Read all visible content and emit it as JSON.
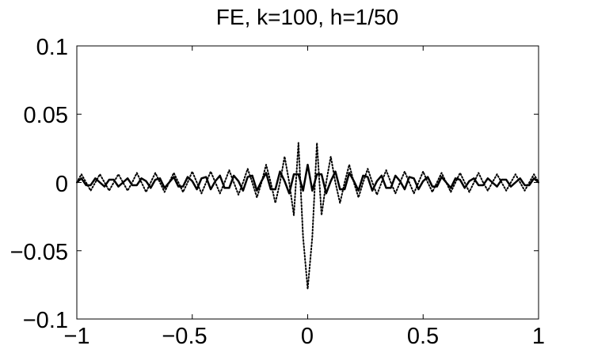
{
  "chart_data": {
    "type": "line",
    "title": "FE, k=100, h=1/50",
    "xlabel": "",
    "ylabel": "",
    "xlim": [
      -1,
      1
    ],
    "ylim": [
      -0.1,
      0.1
    ],
    "x_ticks": [
      -1,
      -0.5,
      0,
      0.5,
      1
    ],
    "x_tick_labels": [
      "−1",
      "−0.5",
      "0",
      "0.5",
      "1"
    ],
    "y_ticks": [
      0.1,
      0.05,
      0,
      -0.05,
      -0.1
    ],
    "y_tick_labels": [
      "0.1",
      "0.05",
      "0",
      "−0.05",
      "−0.1"
    ],
    "grid": false,
    "legend": "none",
    "series": [
      {
        "line_style": "solid",
        "color": "#000000",
        "x": [
          -1,
          -0.98,
          -0.96,
          -0.94,
          -0.92,
          -0.9,
          -0.88,
          -0.86,
          -0.84,
          -0.82,
          -0.8,
          -0.78,
          -0.76,
          -0.74,
          -0.72,
          -0.7,
          -0.68,
          -0.66,
          -0.64,
          -0.62,
          -0.6,
          -0.58,
          -0.56,
          -0.54,
          -0.52,
          -0.5,
          -0.48,
          -0.46,
          -0.44,
          -0.42,
          -0.4,
          -0.38,
          -0.36,
          -0.34,
          -0.32,
          -0.3,
          -0.28,
          -0.26,
          -0.24,
          -0.22,
          -0.2,
          -0.18,
          -0.16,
          -0.14,
          -0.12,
          -0.1,
          -0.08,
          -0.06,
          -0.04,
          -0.02,
          0,
          0.02,
          0.04,
          0.06,
          0.08,
          0.1,
          0.12,
          0.14,
          0.16,
          0.18,
          0.2,
          0.22,
          0.24,
          0.26,
          0.28,
          0.3,
          0.32,
          0.34,
          0.36,
          0.38,
          0.4,
          0.42,
          0.44,
          0.46,
          0.48,
          0.5,
          0.52,
          0.54,
          0.56,
          0.58,
          0.6,
          0.62,
          0.64,
          0.66,
          0.68,
          0.7,
          0.72,
          0.74,
          0.76,
          0.78,
          0.8,
          0.82,
          0.84,
          0.86,
          0.88,
          0.9,
          0.92,
          0.94,
          0.96,
          0.98,
          1
        ],
        "y": [
          0.0,
          0.003,
          -0.002,
          -0.002,
          0.003,
          0.0,
          -0.003,
          0.002,
          0.002,
          -0.003,
          0.0,
          0.003,
          -0.002,
          -0.002,
          0.003,
          0.001,
          -0.004,
          0.002,
          0.003,
          -0.004,
          0.0,
          0.004,
          -0.003,
          -0.003,
          0.004,
          0.001,
          -0.005,
          0.003,
          0.004,
          -0.005,
          0.001,
          0.005,
          -0.004,
          -0.004,
          0.005,
          0.001,
          -0.006,
          0.004,
          0.005,
          -0.006,
          0.001,
          0.007,
          -0.005,
          -0.005,
          0.008,
          0.001,
          -0.008,
          0.006,
          0.006,
          -0.006,
          0.013,
          -0.006,
          0.006,
          0.006,
          -0.008,
          0.001,
          0.008,
          -0.005,
          -0.005,
          0.007,
          0.001,
          -0.006,
          0.005,
          0.004,
          -0.006,
          0.001,
          0.005,
          -0.004,
          -0.004,
          0.005,
          0.001,
          -0.005,
          0.004,
          0.003,
          -0.005,
          0.001,
          0.004,
          -0.003,
          -0.003,
          0.004,
          0.0,
          -0.004,
          0.003,
          0.002,
          -0.004,
          0.001,
          0.003,
          -0.002,
          -0.002,
          0.003,
          0.0,
          -0.003,
          0.002,
          0.002,
          -0.003,
          0.0,
          0.003,
          -0.002,
          -0.002,
          0.003,
          0.0
        ]
      },
      {
        "line_style": "dotted",
        "color": "#000000",
        "x": [
          -1,
          -0.98,
          -0.96,
          -0.94,
          -0.92,
          -0.9,
          -0.88,
          -0.86,
          -0.84,
          -0.82,
          -0.8,
          -0.78,
          -0.76,
          -0.74,
          -0.72,
          -0.7,
          -0.68,
          -0.66,
          -0.64,
          -0.62,
          -0.6,
          -0.58,
          -0.56,
          -0.54,
          -0.52,
          -0.5,
          -0.48,
          -0.46,
          -0.44,
          -0.42,
          -0.4,
          -0.38,
          -0.36,
          -0.34,
          -0.32,
          -0.3,
          -0.28,
          -0.26,
          -0.24,
          -0.22,
          -0.2,
          -0.18,
          -0.16,
          -0.14,
          -0.12,
          -0.1,
          -0.08,
          -0.06,
          -0.04,
          -0.02,
          0,
          0.02,
          0.04,
          0.06,
          0.08,
          0.1,
          0.12,
          0.14,
          0.16,
          0.18,
          0.2,
          0.22,
          0.24,
          0.26,
          0.28,
          0.3,
          0.32,
          0.34,
          0.36,
          0.38,
          0.4,
          0.42,
          0.44,
          0.46,
          0.48,
          0.5,
          0.52,
          0.54,
          0.56,
          0.58,
          0.6,
          0.62,
          0.64,
          0.66,
          0.68,
          0.7,
          0.72,
          0.74,
          0.76,
          0.78,
          0.8,
          0.82,
          0.84,
          0.86,
          0.88,
          0.9,
          0.92,
          0.94,
          0.96,
          0.98,
          1
        ],
        "y": [
          0.0,
          0.006,
          0.0,
          -0.006,
          0.0,
          0.006,
          0.0,
          -0.006,
          0.0,
          0.006,
          0.0,
          -0.006,
          0.0,
          0.007,
          0.0,
          -0.007,
          0.0,
          0.007,
          0.0,
          -0.007,
          0.0,
          0.007,
          0.0,
          -0.007,
          0.0,
          0.008,
          0.0,
          -0.008,
          0.0,
          0.008,
          0.0,
          -0.008,
          0.0,
          0.009,
          0.0,
          -0.009,
          0.0,
          0.01,
          0.0,
          -0.011,
          0.0,
          0.013,
          0.0,
          -0.015,
          0.0,
          0.019,
          0.0,
          -0.024,
          0.029,
          -0.04,
          -0.078,
          -0.04,
          0.029,
          -0.024,
          0.0,
          0.019,
          0.0,
          -0.015,
          0.0,
          0.013,
          0.0,
          -0.011,
          0.0,
          0.01,
          0.0,
          -0.009,
          0.0,
          0.009,
          0.0,
          -0.008,
          0.0,
          0.008,
          0.0,
          -0.008,
          0.0,
          0.008,
          0.0,
          -0.007,
          0.0,
          0.007,
          0.0,
          -0.007,
          0.0,
          0.007,
          0.0,
          -0.007,
          0.0,
          0.007,
          0.0,
          -0.006,
          0.0,
          0.006,
          0.0,
          -0.006,
          0.0,
          0.006,
          0.0,
          -0.006,
          0.0,
          0.006,
          0.0
        ]
      }
    ]
  }
}
